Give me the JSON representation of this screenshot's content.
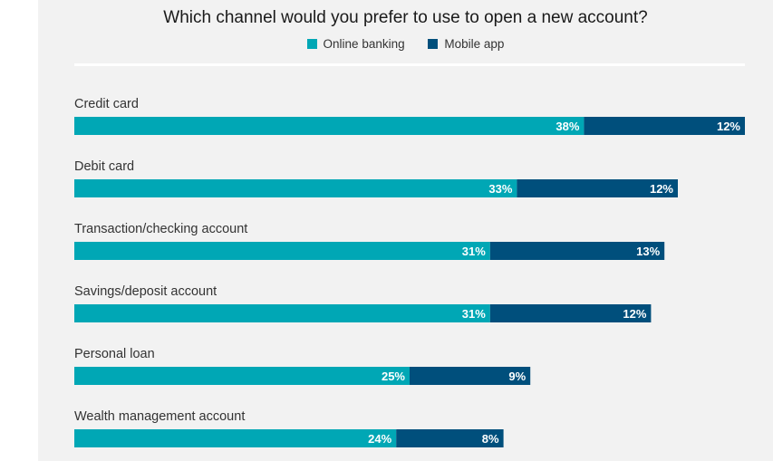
{
  "chart_data": {
    "type": "bar",
    "orientation": "horizontal",
    "stacked": true,
    "title": "Which channel would you prefer to use to open a new account?",
    "categories": [
      "Credit card",
      "Debit card",
      "Transaction/checking account",
      "Savings/deposit account",
      "Personal loan",
      "Wealth management account"
    ],
    "series": [
      {
        "name": "Online banking",
        "color": "#00a7b5",
        "values": [
          38,
          33,
          31,
          31,
          25,
          24
        ]
      },
      {
        "name": "Mobile app",
        "color": "#004f7c",
        "values": [
          12,
          12,
          13,
          12,
          9,
          8
        ]
      }
    ],
    "value_suffix": "%",
    "xlim": [
      0,
      50
    ],
    "legend_position": "top-center",
    "grid": false
  }
}
